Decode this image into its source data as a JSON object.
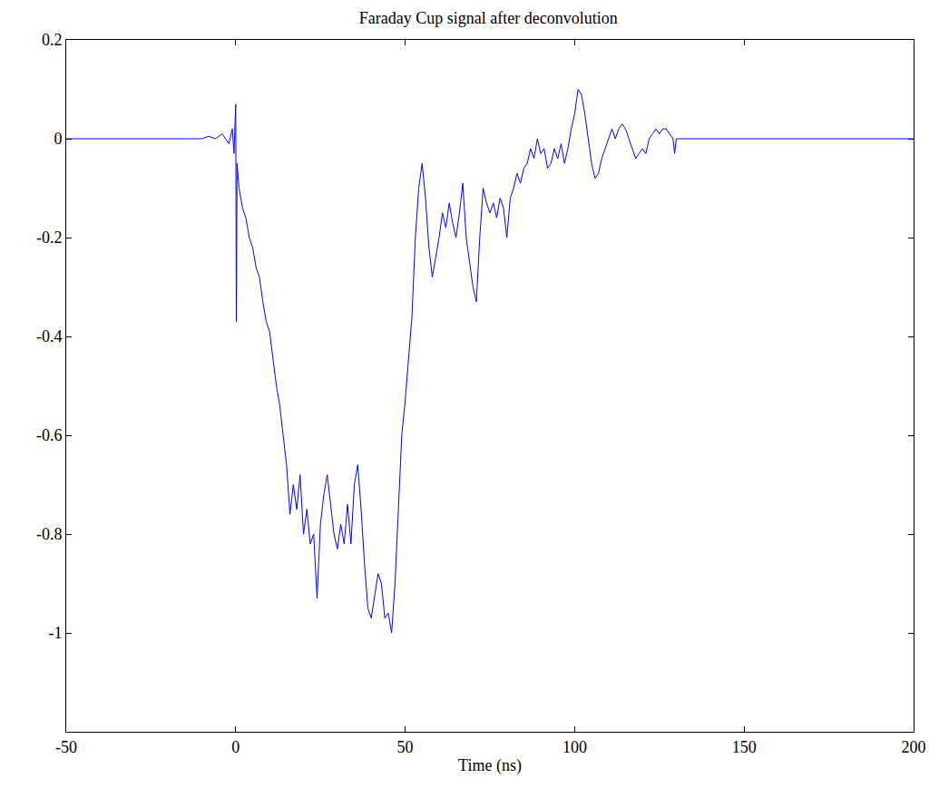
{
  "chart_data": {
    "type": "line",
    "title": "Faraday Cup signal after deconvolution",
    "x_label": "Time (ns)",
    "color": "#0000ff",
    "grid": false,
    "xlim": [
      -50,
      200
    ],
    "xticks": [
      -50,
      0,
      50,
      100,
      150,
      200
    ],
    "ylim": [
      -1.2,
      0.2
    ],
    "yticks": [
      0.2,
      0,
      -0.2,
      -0.4,
      -0.6,
      -0.8,
      -1
    ],
    "x": [
      -50,
      -10,
      -8,
      -6,
      -4,
      -2,
      -1,
      -0.5,
      0,
      0.2,
      0.4,
      1,
      2,
      3,
      4,
      5,
      6,
      7,
      8,
      9,
      10,
      11,
      12,
      13,
      14,
      15,
      16,
      17,
      18,
      19,
      20,
      21,
      22,
      23,
      24,
      25,
      26,
      27,
      28,
      29,
      30,
      31,
      32,
      33,
      34,
      35,
      36,
      37,
      38,
      39,
      40,
      41,
      42,
      43,
      44,
      45,
      46,
      47,
      48,
      49,
      50,
      51,
      52,
      53,
      54,
      55,
      56,
      57,
      58,
      59,
      60,
      61,
      62,
      63,
      64,
      65,
      66,
      67,
      68,
      69,
      70,
      71,
      72,
      73,
      74,
      75,
      76,
      77,
      78,
      79,
      80,
      81,
      82,
      83,
      84,
      85,
      86,
      87,
      88,
      89,
      90,
      91,
      92,
      93,
      94,
      95,
      96,
      97,
      98,
      99,
      100,
      101,
      102,
      103,
      104,
      105,
      106,
      107,
      108,
      109,
      110,
      111,
      112,
      113,
      114,
      115,
      116,
      117,
      118,
      119,
      120,
      121,
      122,
      123,
      124,
      125,
      126,
      127,
      128,
      129,
      129.5,
      130,
      200
    ],
    "values": [
      0,
      0,
      0.005,
      0,
      0.01,
      -0.01,
      0.02,
      -0.03,
      0.07,
      -0.37,
      -0.05,
      -0.1,
      -0.14,
      -0.16,
      -0.2,
      -0.22,
      -0.26,
      -0.28,
      -0.33,
      -0.37,
      -0.39,
      -0.45,
      -0.5,
      -0.54,
      -0.6,
      -0.66,
      -0.76,
      -0.7,
      -0.75,
      -0.68,
      -0.8,
      -0.75,
      -0.82,
      -0.8,
      -0.93,
      -0.78,
      -0.72,
      -0.68,
      -0.74,
      -0.8,
      -0.83,
      -0.78,
      -0.82,
      -0.74,
      -0.82,
      -0.7,
      -0.66,
      -0.75,
      -0.86,
      -0.95,
      -0.97,
      -0.92,
      -0.88,
      -0.9,
      -0.97,
      -0.96,
      -1.0,
      -0.9,
      -0.75,
      -0.6,
      -0.53,
      -0.45,
      -0.36,
      -0.2,
      -0.1,
      -0.05,
      -0.12,
      -0.22,
      -0.28,
      -0.24,
      -0.2,
      -0.15,
      -0.18,
      -0.13,
      -0.17,
      -0.2,
      -0.15,
      -0.09,
      -0.2,
      -0.25,
      -0.3,
      -0.33,
      -0.2,
      -0.1,
      -0.13,
      -0.15,
      -0.13,
      -0.16,
      -0.12,
      -0.14,
      -0.2,
      -0.12,
      -0.1,
      -0.07,
      -0.09,
      -0.06,
      -0.05,
      -0.02,
      -0.04,
      0,
      -0.03,
      -0.02,
      -0.06,
      -0.05,
      -0.02,
      -0.04,
      -0.01,
      -0.05,
      -0.02,
      0.02,
      0.05,
      0.1,
      0.09,
      0.05,
      0,
      -0.05,
      -0.08,
      -0.07,
      -0.04,
      -0.02,
      0,
      0.02,
      0,
      0.02,
      0.03,
      0.02,
      0,
      -0.02,
      -0.04,
      -0.03,
      -0.02,
      -0.03,
      0,
      0.01,
      0.02,
      0.01,
      0.02,
      0.02,
      0.01,
      0,
      -0.03,
      0,
      0
    ]
  }
}
